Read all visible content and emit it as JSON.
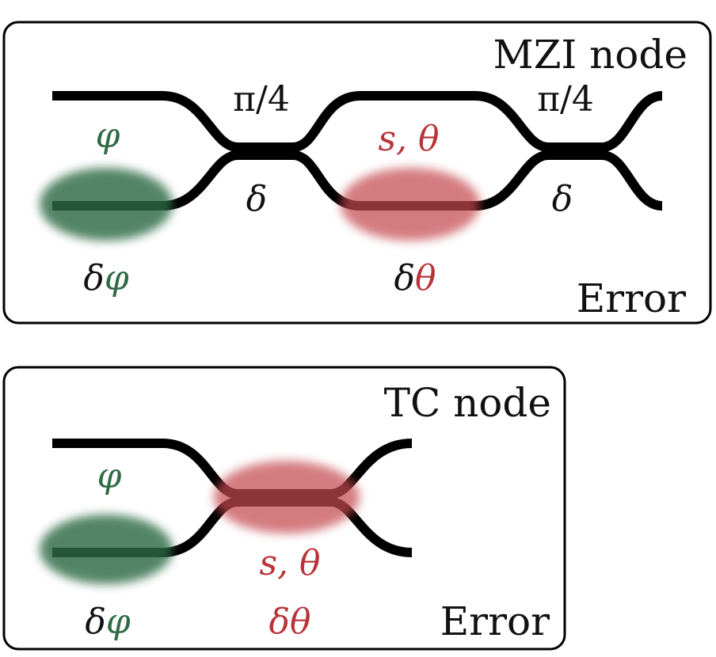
{
  "mzi_node": {
    "title": "MZI node",
    "footer": "Error",
    "splitter_label_1": "π/4",
    "splitter_label_2": "π/4",
    "delta_label_1": "δ",
    "delta_label_2": "δ",
    "phase_label": "φ",
    "phase_error_delta": "δ",
    "phase_error_symbol": "φ",
    "shifter_label": "s, θ",
    "shifter_error_delta": "δ",
    "shifter_error_symbol": "θ"
  },
  "tc_node": {
    "title": "TC node",
    "footer": "Error",
    "phase_label": "φ",
    "phase_error_delta": "δ",
    "phase_error_symbol": "φ",
    "coupler_label": "s, θ",
    "coupler_error_delta": "δ",
    "coupler_error_symbol": "θ"
  },
  "colors": {
    "phase_green": "#2e6b44",
    "shifter_red": "#b8343a",
    "waveguide": "#000000"
  }
}
